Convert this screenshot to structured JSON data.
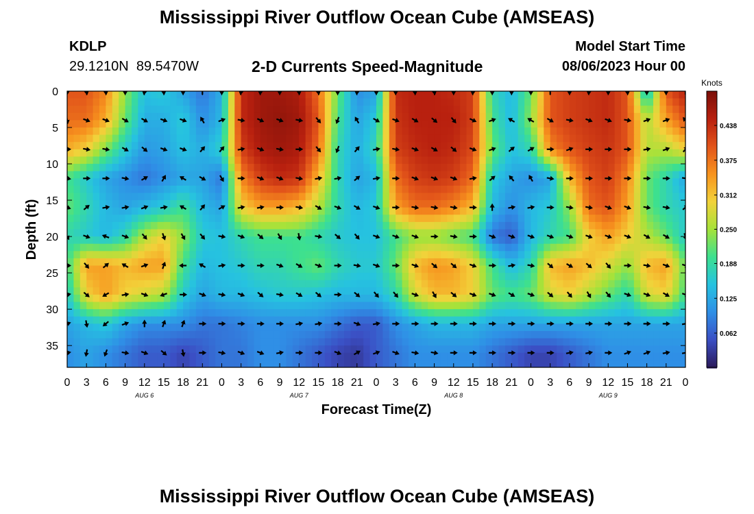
{
  "header": {
    "title": "Mississippi River Outflow Ocean Cube (AMSEAS)",
    "station": "KDLP",
    "coords": "29.1210N  89.5470W",
    "subtitle": "2-D Currents Speed-Magnitude",
    "model_start_label": "Model Start Time",
    "model_start_value": "08/06/2023 Hour 00"
  },
  "footer": {
    "title": "Mississippi River Outflow Ocean Cube (AMSEAS)"
  },
  "chart_data": {
    "type": "heatmap",
    "title": "2-D Currents Speed-Magnitude",
    "xlabel": "Forecast Time(Z)",
    "ylabel": "Depth (ft)",
    "x": [
      0,
      3,
      6,
      9,
      12,
      15,
      18,
      21,
      24,
      27,
      30,
      33,
      36,
      39,
      42,
      45,
      48,
      51,
      54,
      57,
      60,
      63,
      66,
      69,
      72,
      75,
      78,
      81,
      84,
      87,
      90,
      93,
      96
    ],
    "x_tick_labels": [
      "0",
      "3",
      "6",
      "9",
      "12",
      "15",
      "18",
      "21",
      "0",
      "3",
      "6",
      "9",
      "12",
      "15",
      "18",
      "21",
      "0",
      "3",
      "6",
      "9",
      "12",
      "15",
      "18",
      "21",
      "0",
      "3",
      "6",
      "9",
      "12",
      "15",
      "18",
      "21",
      "0"
    ],
    "day_labels": [
      "AUG 6",
      "AUG 7",
      "AUG 8",
      "AUG 9"
    ],
    "y": [
      0,
      4,
      8,
      12,
      16,
      20,
      24,
      28,
      32,
      36
    ],
    "y_ticks": [
      0,
      5,
      10,
      15,
      20,
      25,
      30,
      35
    ],
    "ylim": [
      0,
      38
    ],
    "xlim": [
      0,
      96
    ],
    "colorbar": {
      "unit": "Knots",
      "min": 0,
      "max": 0.5,
      "ticks": [
        0.062,
        0.125,
        0.188,
        0.25,
        0.312,
        0.375,
        0.438
      ],
      "tick_labels": [
        "0.062",
        "0.125",
        "0.188",
        "0.250",
        "0.312",
        "0.375",
        "0.438"
      ],
      "colors": [
        "#2b1a5c",
        "#3b4fc4",
        "#2f8fe6",
        "#26c2e0",
        "#3de08f",
        "#a6e23a",
        "#f2d23a",
        "#f7931e",
        "#e2541a",
        "#b8200f",
        "#7a0f08"
      ]
    },
    "speed_knots": [
      [
        0.4,
        0.4,
        0.36,
        0.24,
        0.15,
        0.16,
        0.12,
        0.08,
        0.13,
        0.44,
        0.47,
        0.47,
        0.46,
        0.38,
        0.22,
        0.1,
        0.12,
        0.44,
        0.45,
        0.45,
        0.44,
        0.42,
        0.18,
        0.14,
        0.22,
        0.4,
        0.42,
        0.43,
        0.44,
        0.4,
        0.14,
        0.4,
        0.45
      ],
      [
        0.38,
        0.38,
        0.33,
        0.22,
        0.13,
        0.13,
        0.16,
        0.1,
        0.14,
        0.44,
        0.47,
        0.48,
        0.47,
        0.4,
        0.2,
        0.12,
        0.16,
        0.43,
        0.45,
        0.45,
        0.45,
        0.42,
        0.2,
        0.14,
        0.24,
        0.4,
        0.42,
        0.43,
        0.44,
        0.4,
        0.26,
        0.34,
        0.4
      ],
      [
        0.33,
        0.3,
        0.23,
        0.16,
        0.11,
        0.12,
        0.15,
        0.13,
        0.17,
        0.42,
        0.46,
        0.47,
        0.46,
        0.38,
        0.18,
        0.13,
        0.18,
        0.42,
        0.44,
        0.45,
        0.44,
        0.41,
        0.22,
        0.15,
        0.18,
        0.36,
        0.4,
        0.42,
        0.43,
        0.4,
        0.26,
        0.26,
        0.3
      ],
      [
        0.2,
        0.16,
        0.12,
        0.1,
        0.08,
        0.1,
        0.12,
        0.12,
        0.08,
        0.36,
        0.42,
        0.44,
        0.43,
        0.32,
        0.18,
        0.12,
        0.14,
        0.38,
        0.42,
        0.43,
        0.42,
        0.38,
        0.16,
        0.12,
        0.1,
        0.12,
        0.32,
        0.4,
        0.42,
        0.36,
        0.22,
        0.18,
        0.12
      ],
      [
        0.22,
        0.18,
        0.14,
        0.12,
        0.14,
        0.16,
        0.2,
        0.14,
        0.12,
        0.3,
        0.34,
        0.34,
        0.32,
        0.26,
        0.18,
        0.14,
        0.16,
        0.34,
        0.38,
        0.38,
        0.36,
        0.32,
        0.14,
        0.1,
        0.14,
        0.16,
        0.24,
        0.38,
        0.4,
        0.34,
        0.22,
        0.18,
        0.16
      ],
      [
        0.18,
        0.16,
        0.14,
        0.18,
        0.26,
        0.3,
        0.24,
        0.16,
        0.15,
        0.18,
        0.2,
        0.2,
        0.2,
        0.18,
        0.16,
        0.15,
        0.15,
        0.2,
        0.24,
        0.24,
        0.22,
        0.2,
        0.08,
        0.06,
        0.14,
        0.18,
        0.2,
        0.3,
        0.34,
        0.3,
        0.26,
        0.22,
        0.16
      ],
      [
        0.2,
        0.34,
        0.34,
        0.32,
        0.34,
        0.34,
        0.2,
        0.14,
        0.15,
        0.16,
        0.18,
        0.18,
        0.2,
        0.22,
        0.18,
        0.16,
        0.16,
        0.22,
        0.32,
        0.35,
        0.34,
        0.3,
        0.2,
        0.14,
        0.18,
        0.32,
        0.34,
        0.32,
        0.28,
        0.24,
        0.32,
        0.34,
        0.22
      ],
      [
        0.16,
        0.3,
        0.34,
        0.3,
        0.28,
        0.26,
        0.16,
        0.12,
        0.14,
        0.14,
        0.15,
        0.16,
        0.16,
        0.15,
        0.14,
        0.14,
        0.14,
        0.18,
        0.28,
        0.32,
        0.32,
        0.3,
        0.22,
        0.2,
        0.22,
        0.28,
        0.3,
        0.26,
        0.22,
        0.18,
        0.28,
        0.3,
        0.2
      ],
      [
        0.12,
        0.14,
        0.16,
        0.12,
        0.1,
        0.1,
        0.1,
        0.08,
        0.08,
        0.09,
        0.1,
        0.1,
        0.1,
        0.1,
        0.08,
        0.06,
        0.06,
        0.1,
        0.12,
        0.14,
        0.14,
        0.14,
        0.12,
        0.12,
        0.12,
        0.12,
        0.12,
        0.12,
        0.12,
        0.12,
        0.12,
        0.12,
        0.12
      ],
      [
        0.1,
        0.12,
        0.1,
        0.08,
        0.06,
        0.06,
        0.04,
        0.06,
        0.08,
        0.08,
        0.1,
        0.1,
        0.08,
        0.06,
        0.04,
        0.03,
        0.06,
        0.08,
        0.1,
        0.1,
        0.1,
        0.1,
        0.08,
        0.06,
        0.04,
        0.04,
        0.06,
        0.08,
        0.1,
        0.1,
        0.1,
        0.1,
        0.1
      ]
    ],
    "direction_deg": [
      [
        180,
        170,
        175,
        180,
        190,
        175,
        180,
        0,
        180,
        190,
        185,
        180,
        175,
        170,
        180,
        185,
        180,
        180,
        175,
        170,
        180,
        185,
        180,
        180,
        180,
        0,
        180,
        185,
        180,
        175,
        180,
        180,
        0
      ],
      [
        170,
        110,
        110,
        120,
        120,
        110,
        110,
        330,
        70,
        100,
        115,
        110,
        100,
        140,
        200,
        330,
        120,
        110,
        120,
        130,
        140,
        115,
        70,
        300,
        300,
        120,
        100,
        110,
        110,
        100,
        70,
        70,
        320
      ],
      [
        90,
        100,
        100,
        120,
        130,
        110,
        110,
        40,
        40,
        80,
        110,
        100,
        90,
        140,
        200,
        40,
        80,
        100,
        110,
        120,
        130,
        110,
        70,
        50,
        60,
        90,
        70,
        90,
        90,
        90,
        80,
        70,
        40
      ],
      [
        100,
        90,
        90,
        100,
        60,
        30,
        300,
        120,
        150,
        90,
        110,
        110,
        100,
        80,
        80,
        50,
        80,
        90,
        110,
        110,
        110,
        80,
        50,
        320,
        330,
        100,
        90,
        90,
        90,
        90,
        90,
        90,
        100
      ],
      [
        110,
        50,
        80,
        80,
        70,
        80,
        300,
        40,
        60,
        80,
        80,
        90,
        100,
        120,
        110,
        120,
        110,
        90,
        100,
        100,
        100,
        90,
        0,
        80,
        80,
        90,
        100,
        100,
        110,
        110,
        100,
        100,
        50
      ],
      [
        150,
        110,
        290,
        110,
        140,
        160,
        150,
        140,
        100,
        110,
        130,
        150,
        170,
        100,
        130,
        140,
        110,
        110,
        110,
        90,
        100,
        90,
        110,
        110,
        110,
        110,
        110,
        110,
        110,
        110,
        120,
        120,
        160
      ],
      [
        90,
        140,
        50,
        300,
        70,
        20,
        270,
        300,
        80,
        90,
        90,
        110,
        120,
        110,
        90,
        100,
        110,
        90,
        110,
        130,
        130,
        110,
        90,
        80,
        100,
        130,
        120,
        130,
        140,
        90,
        100,
        110,
        110
      ],
      [
        80,
        130,
        240,
        80,
        110,
        250,
        90,
        110,
        100,
        110,
        130,
        100,
        120,
        130,
        90,
        130,
        140,
        140,
        110,
        150,
        130,
        110,
        110,
        120,
        110,
        130,
        140,
        150,
        140,
        110,
        110,
        120,
        110
      ],
      [
        70,
        170,
        230,
        70,
        0,
        20,
        20,
        90,
        90,
        90,
        90,
        90,
        80,
        80,
        90,
        110,
        80,
        90,
        90,
        90,
        90,
        90,
        90,
        90,
        90,
        90,
        90,
        90,
        90,
        90,
        90,
        90,
        80
      ],
      [
        80,
        190,
        200,
        100,
        110,
        130,
        170,
        90,
        100,
        110,
        110,
        80,
        90,
        90,
        110,
        60,
        70,
        110,
        100,
        100,
        90,
        90,
        90,
        90,
        90,
        90,
        80,
        80,
        90,
        70,
        70,
        80,
        80
      ]
    ]
  }
}
